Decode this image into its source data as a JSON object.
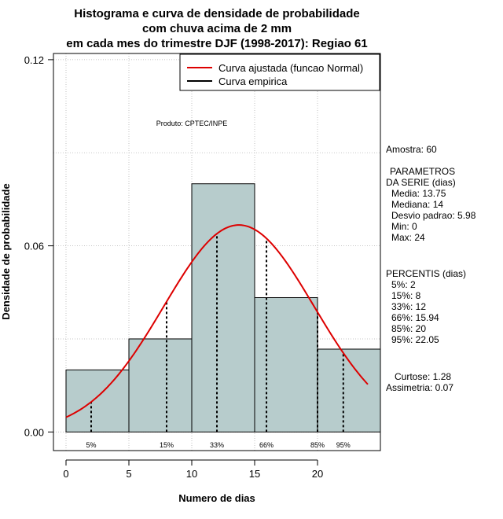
{
  "chart_data": {
    "type": "bar",
    "title": [
      "Histograma e curva de densidade de probabilidade",
      "com chuva acima de 2 mm",
      "em cada mes do trimestre DJF (1998-2017): Regiao 61"
    ],
    "xlabel": "Numero de dias",
    "ylabel": "Densidade de probabilidade",
    "xlim": [
      -1,
      25
    ],
    "ylim": [
      -0.006,
      0.122
    ],
    "x_ticks": [
      0,
      5,
      10,
      15,
      20
    ],
    "x_tick_labels": [
      "0",
      "5",
      "10",
      "15",
      "20"
    ],
    "y_ticks": [
      0.0,
      0.06,
      0.12
    ],
    "y_tick_labels": [
      "0.00",
      "0.06",
      "0.12"
    ],
    "grid_x": [
      0,
      5,
      10,
      15,
      20
    ],
    "grid_y": [
      0,
      0.03,
      0.06,
      0.09,
      0.12
    ],
    "bins": [
      {
        "x0": 0,
        "x1": 5,
        "density": 0.02
      },
      {
        "x0": 5,
        "x1": 10,
        "density": 0.03
      },
      {
        "x0": 10,
        "x1": 15,
        "density": 0.08
      },
      {
        "x0": 15,
        "x1": 20,
        "density": 0.0433
      },
      {
        "x0": 20,
        "x1": 25,
        "density": 0.0267
      }
    ],
    "bar_color": "#b7cccc",
    "normal_curve": {
      "mean": 13.75,
      "sd": 5.98,
      "x_range": [
        0,
        24
      ],
      "color": "#dd0000"
    },
    "percentile_lines": [
      {
        "label": "5%",
        "x": 2
      },
      {
        "label": "15%",
        "x": 8
      },
      {
        "label": "33%",
        "x": 12
      },
      {
        "label": "66%",
        "x": 15.94
      },
      {
        "label": "85%",
        "x": 20
      },
      {
        "label": "95%",
        "x": 22.05
      }
    ],
    "legend": {
      "position": "top-right",
      "entries": [
        {
          "label": "Curva ajustada (funcao Normal)",
          "color": "#dd0000"
        },
        {
          "label": "Curva empirica",
          "color": "#000000"
        }
      ]
    },
    "annotation": "Produto: CPTEC/INPE"
  },
  "side_panel": {
    "amostra": "Amostra: 60",
    "parametros_title": "PARAMETROS",
    "parametros_subtitle": "DA SERIE (dias)",
    "parametros": [
      "Media: 13.75",
      "Mediana: 14",
      "Desvio padrao: 5.98",
      "Min: 0",
      "Max: 24"
    ],
    "percentis_title": "PERCENTIS (dias)",
    "percentis": [
      "5%: 2",
      "15%: 8",
      "33%: 12",
      "66%: 15.94",
      "85%: 20",
      "95%: 22.05"
    ],
    "curtose": "Curtose: 1.28",
    "assimetria": "Assimetria: 0.07"
  }
}
